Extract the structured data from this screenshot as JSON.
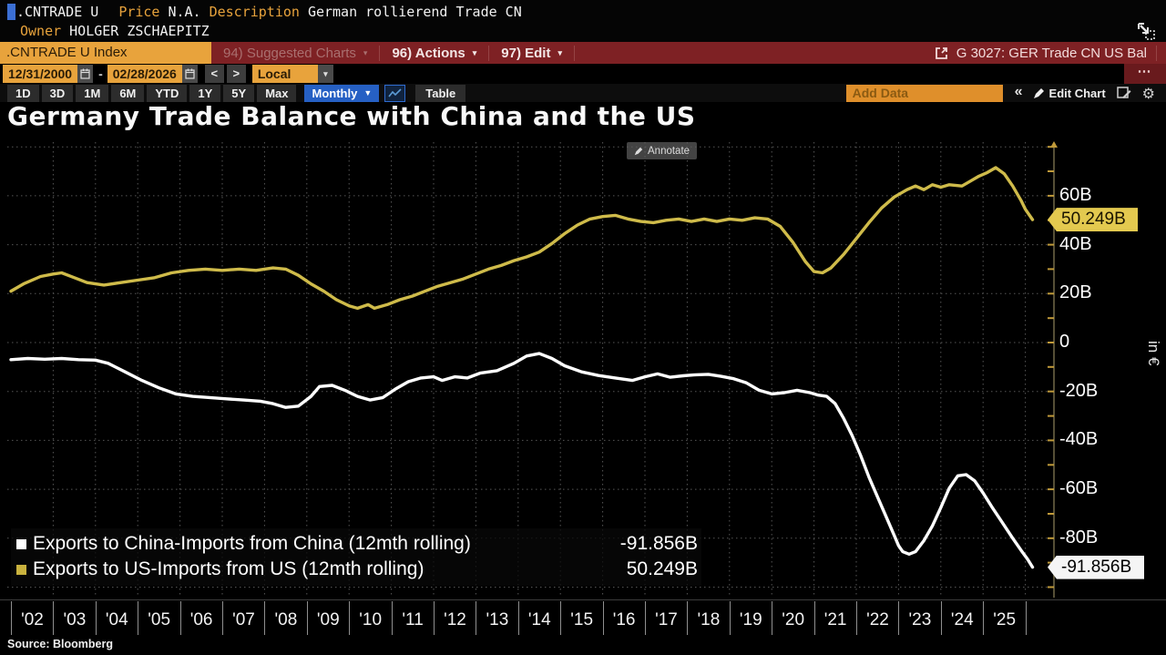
{
  "header": {
    "ticker": ".CNTRADE U",
    "price_label": "Price",
    "price_value": "N.A.",
    "desc_label": "Description",
    "desc_value": "German rollierend Trade CN",
    "owner_label": "Owner",
    "owner_value": "HOLGER ZSCHAEPITZ"
  },
  "toolbar": {
    "security_box": ".CNTRADE U Index",
    "menu_suggested": "94) Suggested Charts",
    "menu_actions": "96) Actions",
    "menu_edit": "97) Edit",
    "caret": "▾",
    "chart_ref": "G 3027: GER Trade CN US Bal",
    "more": "⋯"
  },
  "controls": {
    "date_from": "12/31/2000",
    "date_sep": "-",
    "date_to": "02/28/2026",
    "prev": "<",
    "next": ">",
    "currency": "Local CCY",
    "currency_caret": "▾",
    "ranges": [
      "1D",
      "3D",
      "1M",
      "6M",
      "YTD",
      "1Y",
      "5Y",
      "Max"
    ],
    "period": "Monthly",
    "period_caret": "▼",
    "table_label": "Table",
    "add_data_placeholder": "Add Data",
    "collapse": "«",
    "edit_chart": "Edit Chart",
    "gear": "⚙"
  },
  "chart": {
    "title": "Germany Trade Balance with China and the US",
    "annotate": "Annotate",
    "unit": "in €",
    "badge_us": "50.249B",
    "badge_china": "-91.856B",
    "source": "Source:  Bloomberg"
  },
  "legend": {
    "items": [
      {
        "label": "Exports to China-Imports from China (12mth rolling)",
        "value": "-91.856B",
        "color": "#ffffff"
      },
      {
        "label": "Exports to US-Imports from US (12mth rolling)",
        "value": "50.249B",
        "color": "#c9b23e"
      }
    ]
  },
  "colors": {
    "accent_amber": "#e8a33c",
    "toolbar_red": "#7e2124",
    "period_blue": "#2660c4",
    "series_us": "#cfbb4a",
    "series_china": "#ffffff",
    "badge_yellow": "#e3c94f",
    "badge_white": "#f5f5f5",
    "grid": "#565656",
    "axis_tick": "#c09a3a"
  },
  "chart_data": {
    "type": "line",
    "title": "Germany Trade Balance with China and the US",
    "ylabel": "in €",
    "unit": "billions EUR",
    "x_range": [
      2002,
      2026.2
    ],
    "ylim": [
      -100,
      80
    ],
    "grid": true,
    "legend_position": "bottom-left",
    "h_grid_values": [
      80,
      60,
      40,
      20,
      0,
      -20,
      -40,
      -60,
      -80,
      -100
    ],
    "y_axis_labels": [
      {
        "v": 60,
        "t": "60B"
      },
      {
        "v": 40,
        "t": "40B"
      },
      {
        "v": 20,
        "t": "20B"
      },
      {
        "v": 0,
        "t": "0"
      },
      {
        "v": -20,
        "t": "-20B"
      },
      {
        "v": -40,
        "t": "-40B"
      },
      {
        "v": -60,
        "t": "-60B"
      },
      {
        "v": -80,
        "t": "-80B"
      }
    ],
    "x_tick_labels": [
      "'02",
      "'03",
      "'04",
      "'05",
      "'06",
      "'07",
      "'08",
      "'09",
      "'10",
      "'11",
      "'12",
      "'13",
      "'14",
      "'15",
      "'16",
      "'17",
      "'18",
      "'19",
      "'20",
      "'21",
      "'22",
      "'23",
      "'24",
      "'25"
    ],
    "badges": [
      {
        "value": 50.249,
        "label": "50.249B",
        "style": "yellow"
      },
      {
        "value": -91.856,
        "label": "-91.856B",
        "style": "white"
      }
    ],
    "series": [
      {
        "name": "Exports to US-Imports from US (12mth rolling)",
        "color": "#cfbb4a",
        "last_value": 50.249,
        "points": [
          [
            2002.0,
            21
          ],
          [
            2002.3,
            24
          ],
          [
            2002.7,
            27
          ],
          [
            2003.0,
            28
          ],
          [
            2003.2,
            28.5
          ],
          [
            2003.5,
            26.5
          ],
          [
            2003.8,
            24.5
          ],
          [
            2004.2,
            23.5
          ],
          [
            2004.6,
            24.5
          ],
          [
            2005.0,
            25.5
          ],
          [
            2005.4,
            26.5
          ],
          [
            2005.8,
            28.5
          ],
          [
            2006.2,
            29.5
          ],
          [
            2006.6,
            30
          ],
          [
            2007.0,
            29.5
          ],
          [
            2007.4,
            30
          ],
          [
            2007.8,
            29.5
          ],
          [
            2008.2,
            30.5
          ],
          [
            2008.5,
            30
          ],
          [
            2008.8,
            27.5
          ],
          [
            2009.1,
            24
          ],
          [
            2009.4,
            21
          ],
          [
            2009.7,
            17.5
          ],
          [
            2010.0,
            15
          ],
          [
            2010.2,
            14
          ],
          [
            2010.45,
            15.5
          ],
          [
            2010.6,
            14
          ],
          [
            2010.9,
            15.5
          ],
          [
            2011.2,
            17.5
          ],
          [
            2011.5,
            19
          ],
          [
            2011.8,
            21
          ],
          [
            2012.1,
            23
          ],
          [
            2012.4,
            24.5
          ],
          [
            2012.7,
            26
          ],
          [
            2013.0,
            28
          ],
          [
            2013.3,
            30
          ],
          [
            2013.6,
            31.5
          ],
          [
            2013.9,
            33.5
          ],
          [
            2014.2,
            35
          ],
          [
            2014.5,
            37
          ],
          [
            2014.8,
            40.5
          ],
          [
            2015.1,
            44.5
          ],
          [
            2015.4,
            48
          ],
          [
            2015.7,
            50.5
          ],
          [
            2016.0,
            51.5
          ],
          [
            2016.3,
            52
          ],
          [
            2016.6,
            50.5
          ],
          [
            2016.9,
            49.5
          ],
          [
            2017.2,
            49
          ],
          [
            2017.5,
            50
          ],
          [
            2017.8,
            50.5
          ],
          [
            2018.1,
            49.5
          ],
          [
            2018.4,
            50.5
          ],
          [
            2018.7,
            49.5
          ],
          [
            2019.0,
            50.5
          ],
          [
            2019.3,
            50
          ],
          [
            2019.6,
            51
          ],
          [
            2019.9,
            50.5
          ],
          [
            2020.2,
            47.5
          ],
          [
            2020.5,
            41
          ],
          [
            2020.8,
            33
          ],
          [
            2021.0,
            29
          ],
          [
            2021.2,
            28.5
          ],
          [
            2021.4,
            30.5
          ],
          [
            2021.7,
            36
          ],
          [
            2022.0,
            42.5
          ],
          [
            2022.3,
            49
          ],
          [
            2022.6,
            55
          ],
          [
            2022.9,
            59.5
          ],
          [
            2023.2,
            62.5
          ],
          [
            2023.4,
            64
          ],
          [
            2023.6,
            62.5
          ],
          [
            2023.8,
            64.5
          ],
          [
            2024.0,
            63.5
          ],
          [
            2024.2,
            64.5
          ],
          [
            2024.5,
            64
          ],
          [
            2024.7,
            66
          ],
          [
            2024.9,
            68
          ],
          [
            2025.1,
            69.5
          ],
          [
            2025.3,
            71.5
          ],
          [
            2025.5,
            69
          ],
          [
            2025.7,
            64
          ],
          [
            2025.9,
            58
          ],
          [
            2026.0,
            54.5
          ],
          [
            2026.17,
            50.249
          ]
        ]
      },
      {
        "name": "Exports to China-Imports from China (12mth rolling)",
        "color": "#ffffff",
        "last_value": -91.856,
        "points": [
          [
            2002.0,
            -7
          ],
          [
            2002.4,
            -6.5
          ],
          [
            2002.8,
            -6.8
          ],
          [
            2003.2,
            -6.5
          ],
          [
            2003.6,
            -7
          ],
          [
            2004.0,
            -7.2
          ],
          [
            2004.3,
            -8.5
          ],
          [
            2004.7,
            -12
          ],
          [
            2005.1,
            -15.5
          ],
          [
            2005.5,
            -18.5
          ],
          [
            2005.9,
            -21
          ],
          [
            2006.3,
            -22
          ],
          [
            2006.7,
            -22.5
          ],
          [
            2007.1,
            -23
          ],
          [
            2007.5,
            -23.5
          ],
          [
            2007.9,
            -24
          ],
          [
            2008.2,
            -25
          ],
          [
            2008.5,
            -26.5
          ],
          [
            2008.8,
            -26
          ],
          [
            2009.1,
            -22
          ],
          [
            2009.3,
            -18
          ],
          [
            2009.6,
            -17.5
          ],
          [
            2009.9,
            -19.5
          ],
          [
            2010.2,
            -22
          ],
          [
            2010.5,
            -23.5
          ],
          [
            2010.8,
            -22.5
          ],
          [
            2011.1,
            -19
          ],
          [
            2011.4,
            -16
          ],
          [
            2011.7,
            -14.5
          ],
          [
            2012.0,
            -14
          ],
          [
            2012.2,
            -15.5
          ],
          [
            2012.5,
            -14
          ],
          [
            2012.8,
            -14.5
          ],
          [
            2013.1,
            -12.5
          ],
          [
            2013.5,
            -11.5
          ],
          [
            2013.9,
            -8.5
          ],
          [
            2014.2,
            -5.5
          ],
          [
            2014.5,
            -4.5
          ],
          [
            2014.8,
            -6.5
          ],
          [
            2015.1,
            -9.5
          ],
          [
            2015.5,
            -12
          ],
          [
            2015.9,
            -13.5
          ],
          [
            2016.3,
            -14.5
          ],
          [
            2016.7,
            -15.5
          ],
          [
            2017.0,
            -14
          ],
          [
            2017.3,
            -12.8
          ],
          [
            2017.6,
            -14.2
          ],
          [
            2017.9,
            -13.6
          ],
          [
            2018.2,
            -13.2
          ],
          [
            2018.5,
            -13
          ],
          [
            2018.8,
            -13.8
          ],
          [
            2019.1,
            -14.8
          ],
          [
            2019.4,
            -16.5
          ],
          [
            2019.7,
            -19.5
          ],
          [
            2020.0,
            -21
          ],
          [
            2020.3,
            -20.5
          ],
          [
            2020.6,
            -19.5
          ],
          [
            2020.9,
            -20.5
          ],
          [
            2021.1,
            -21.5
          ],
          [
            2021.3,
            -22
          ],
          [
            2021.5,
            -25
          ],
          [
            2021.7,
            -31
          ],
          [
            2021.9,
            -38
          ],
          [
            2022.1,
            -46
          ],
          [
            2022.3,
            -55
          ],
          [
            2022.5,
            -63
          ],
          [
            2022.7,
            -71
          ],
          [
            2022.9,
            -79
          ],
          [
            2023.0,
            -83
          ],
          [
            2023.1,
            -85.5
          ],
          [
            2023.25,
            -86.5
          ],
          [
            2023.4,
            -85.5
          ],
          [
            2023.6,
            -81
          ],
          [
            2023.8,
            -75
          ],
          [
            2024.0,
            -67.5
          ],
          [
            2024.2,
            -59.5
          ],
          [
            2024.4,
            -54.5
          ],
          [
            2024.6,
            -54
          ],
          [
            2024.8,
            -56.5
          ],
          [
            2025.0,
            -61.5
          ],
          [
            2025.2,
            -67
          ],
          [
            2025.45,
            -73.5
          ],
          [
            2025.7,
            -80
          ],
          [
            2025.9,
            -85
          ],
          [
            2026.05,
            -88.5
          ],
          [
            2026.17,
            -91.856
          ]
        ]
      }
    ]
  }
}
